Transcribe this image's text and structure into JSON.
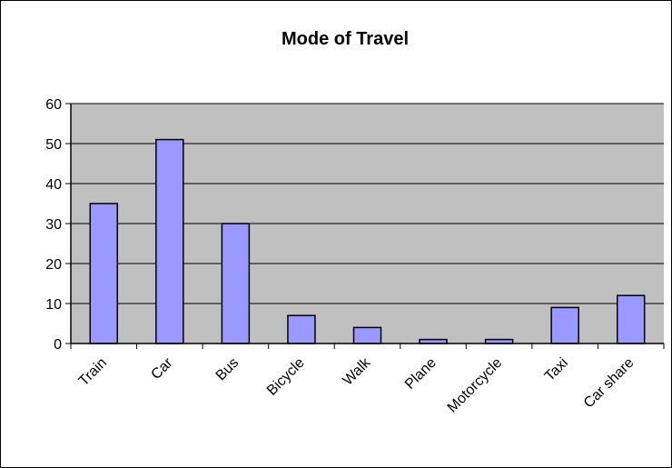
{
  "chart_data": {
    "type": "bar",
    "title": "Mode of Travel",
    "xlabel": "",
    "ylabel": "",
    "categories": [
      "Train",
      "Car",
      "Bus",
      "Bicycle",
      "Walk",
      "Plane",
      "Motorcycle",
      "Taxi",
      "Car share"
    ],
    "values": [
      35,
      51,
      30,
      7,
      4,
      1,
      1,
      9,
      12
    ],
    "ylim": [
      0,
      60
    ],
    "yticks": [
      0,
      10,
      20,
      30,
      40,
      50,
      60
    ],
    "grid": true,
    "legend": "none",
    "colors": {
      "plot_background": "#c0c0c0",
      "bar_fill": "#9999ff",
      "bar_stroke": "#000000",
      "gridline": "#000000"
    }
  }
}
